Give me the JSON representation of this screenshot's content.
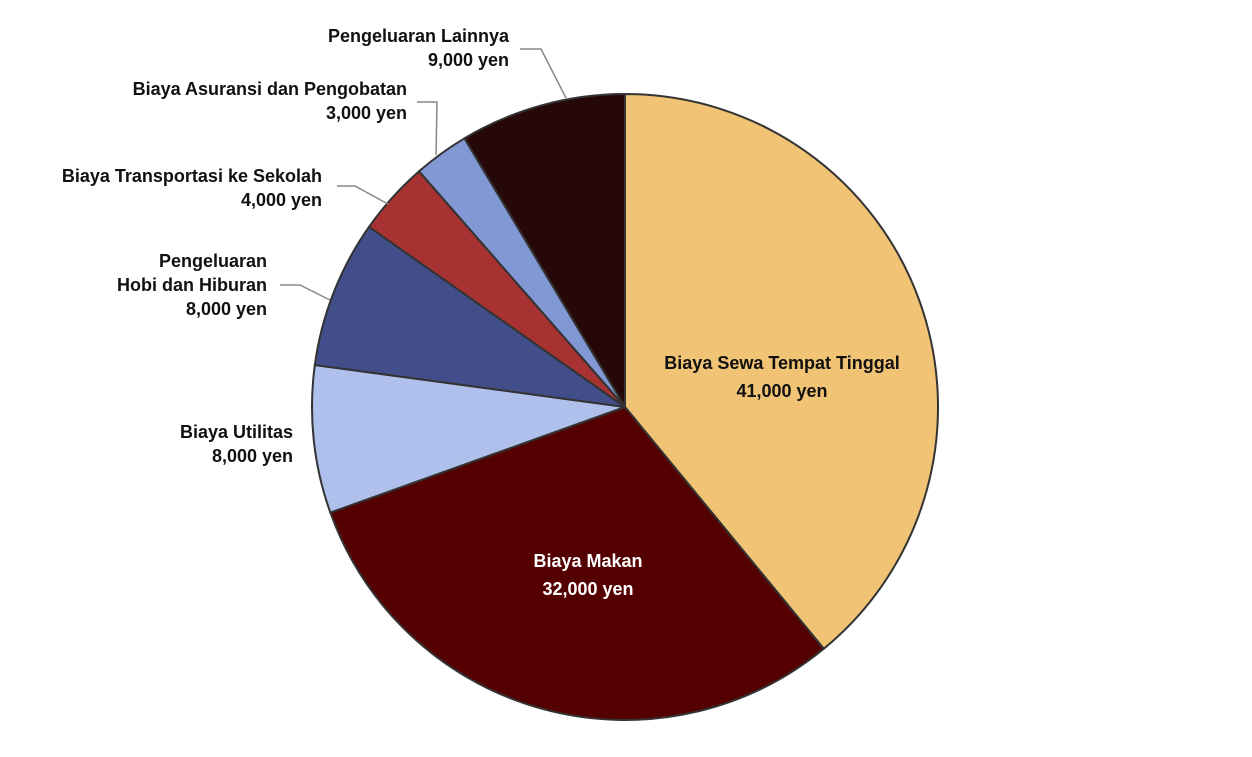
{
  "chart_data": {
    "type": "pie",
    "categories": [
      "Biaya Sewa Tempat Tinggal",
      "Biaya Makan",
      "Biaya Utilitas",
      "Pengeluaran\nHobi dan Hiburan",
      "Biaya Transportasi ke Sekolah",
      "Biaya Asuransi dan Pengobatan",
      "Pengeluaran Lainnya"
    ],
    "values": [
      41000,
      32000,
      8000,
      8000,
      4000,
      3000,
      9000
    ],
    "value_labels": [
      "41,000 yen",
      "32,000 yen",
      "8,000 yen",
      "8,000 yen",
      "4,000 yen",
      "3,000 yen",
      "9,000 yen"
    ],
    "colors": [
      "#f0c375",
      "#550000",
      "#b0c0ec",
      "#414e8a",
      "#a83232",
      "#8298d4",
      "#260808"
    ]
  }
}
